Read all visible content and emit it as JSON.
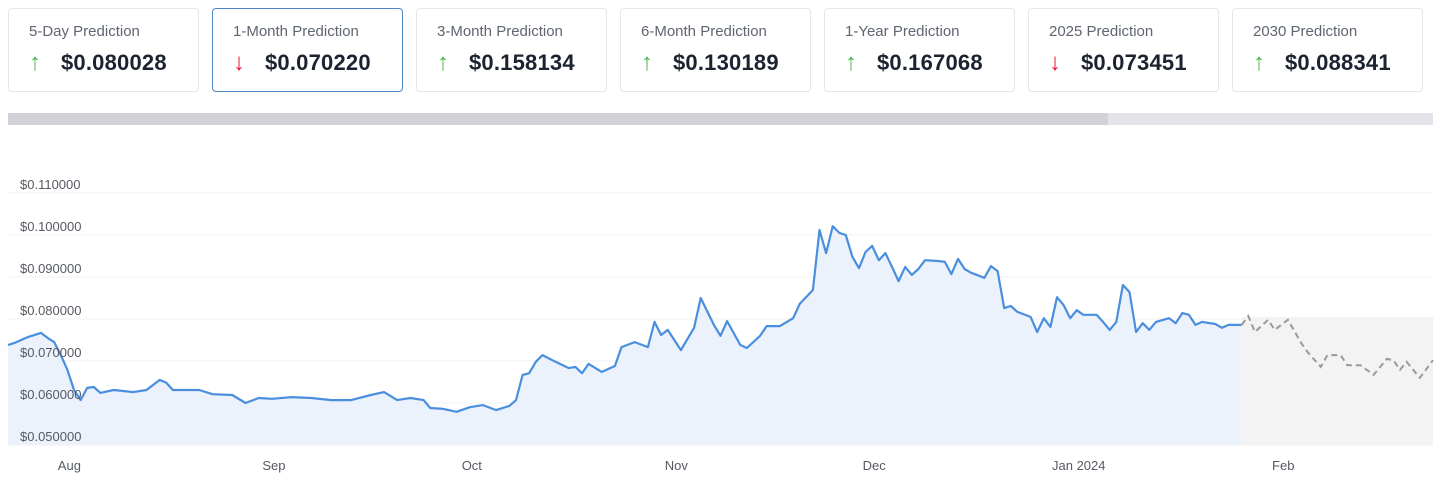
{
  "cards": [
    {
      "label": "5-Day Prediction",
      "value": "$0.080028",
      "direction": "up",
      "icon": "arrow-up-icon"
    },
    {
      "label": "1-Month Prediction",
      "value": "$0.070220",
      "direction": "down",
      "icon": "arrow-down-icon",
      "selected": true
    },
    {
      "label": "3-Month Prediction",
      "value": "$0.158134",
      "direction": "up",
      "icon": "arrow-up-icon"
    },
    {
      "label": "6-Month Prediction",
      "value": "$0.130189",
      "direction": "up",
      "icon": "arrow-up-icon"
    },
    {
      "label": "1-Year Prediction",
      "value": "$0.167068",
      "direction": "up",
      "icon": "arrow-up-icon"
    },
    {
      "label": "2025 Prediction",
      "value": "$0.073451",
      "direction": "down",
      "icon": "arrow-down-icon"
    },
    {
      "label": "2030 Prediction",
      "value": "$0.088341",
      "direction": "up",
      "icon": "arrow-up-icon"
    }
  ],
  "colors": {
    "up": "#4cb84a",
    "down": "#e8192c",
    "line": "#4a8ede",
    "fill": "#ebf2fc",
    "forecast_line": "#9a9a9a",
    "forecast_fill": "#f3f3f3",
    "selected_border": "#4f88c6"
  },
  "chart_data": {
    "type": "line",
    "title": "",
    "xlabel": "",
    "ylabel": "",
    "grid": true,
    "legend": "none",
    "xlim": [
      "2023-07-23",
      "2024-02-24"
    ],
    "ylim": [
      0.05,
      0.11
    ],
    "y_ticks": [
      {
        "value": 0.11,
        "label": "$0.110000"
      },
      {
        "value": 0.1,
        "label": "$0.100000"
      },
      {
        "value": 0.09,
        "label": "$0.090000"
      },
      {
        "value": 0.08,
        "label": "$0.080000"
      },
      {
        "value": 0.07,
        "label": "$0.070000"
      },
      {
        "value": 0.06,
        "label": "$0.060000"
      },
      {
        "value": 0.05,
        "label": "$0.050000"
      }
    ],
    "x_ticks": [
      {
        "date": "2023-08-01",
        "label": "Aug"
      },
      {
        "date": "2023-09-01",
        "label": "Sep"
      },
      {
        "date": "2023-10-01",
        "label": "Oct"
      },
      {
        "date": "2023-11-01",
        "label": "Nov"
      },
      {
        "date": "2023-12-01",
        "label": "Dec"
      },
      {
        "date": "2024-01-01",
        "label": "Jan 2024"
      },
      {
        "date": "2024-02-01",
        "label": "Feb"
      }
    ],
    "series": [
      {
        "style": "solid",
        "points": [
          [
            "2023-07-23",
            0.0738
          ],
          [
            "2023-07-24",
            0.0743
          ],
          [
            "2023-07-26",
            0.0757
          ],
          [
            "2023-07-28",
            0.0767
          ],
          [
            "2023-07-29",
            0.0755
          ],
          [
            "2023-07-30",
            0.0745
          ],
          [
            "2023-07-31",
            0.0714
          ],
          [
            "2023-08-01",
            0.0679
          ],
          [
            "2023-08-02",
            0.0631
          ],
          [
            "2023-08-03",
            0.0607
          ],
          [
            "2023-08-04",
            0.0636
          ],
          [
            "2023-08-05",
            0.0638
          ],
          [
            "2023-08-06",
            0.0624
          ],
          [
            "2023-08-08",
            0.0631
          ],
          [
            "2023-08-11",
            0.0626
          ],
          [
            "2023-08-13",
            0.0631
          ],
          [
            "2023-08-15",
            0.0655
          ],
          [
            "2023-08-16",
            0.0648
          ],
          [
            "2023-08-17",
            0.0631
          ],
          [
            "2023-08-21",
            0.0631
          ],
          [
            "2023-08-23",
            0.0621
          ],
          [
            "2023-08-26",
            0.0619
          ],
          [
            "2023-08-28",
            0.06
          ],
          [
            "2023-08-30",
            0.0612
          ],
          [
            "2023-09-01",
            0.061
          ],
          [
            "2023-09-04",
            0.0614
          ],
          [
            "2023-09-07",
            0.0612
          ],
          [
            "2023-09-10",
            0.0607
          ],
          [
            "2023-09-13",
            0.0607
          ],
          [
            "2023-09-16",
            0.0619
          ],
          [
            "2023-09-18",
            0.0626
          ],
          [
            "2023-09-20",
            0.0607
          ],
          [
            "2023-09-22",
            0.0612
          ],
          [
            "2023-09-24",
            0.0607
          ],
          [
            "2023-09-25",
            0.0588
          ],
          [
            "2023-09-27",
            0.0586
          ],
          [
            "2023-09-29",
            0.0579
          ],
          [
            "2023-10-01",
            0.059
          ],
          [
            "2023-10-03",
            0.0595
          ],
          [
            "2023-10-05",
            0.0583
          ],
          [
            "2023-10-07",
            0.0593
          ],
          [
            "2023-10-08",
            0.0607
          ],
          [
            "2023-10-09",
            0.0667
          ],
          [
            "2023-10-10",
            0.0671
          ],
          [
            "2023-10-11",
            0.0698
          ],
          [
            "2023-10-12",
            0.0714
          ],
          [
            "2023-10-14",
            0.0698
          ],
          [
            "2023-10-16",
            0.0683
          ],
          [
            "2023-10-17",
            0.0686
          ],
          [
            "2023-10-18",
            0.0671
          ],
          [
            "2023-10-19",
            0.0693
          ],
          [
            "2023-10-21",
            0.0674
          ],
          [
            "2023-10-23",
            0.0688
          ],
          [
            "2023-10-24",
            0.0733
          ],
          [
            "2023-10-26",
            0.0745
          ],
          [
            "2023-10-28",
            0.0733
          ],
          [
            "2023-10-29",
            0.0793
          ],
          [
            "2023-10-30",
            0.0762
          ],
          [
            "2023-10-31",
            0.0774
          ],
          [
            "2023-11-01",
            0.075
          ],
          [
            "2023-11-02",
            0.0726
          ],
          [
            "2023-11-04",
            0.0779
          ],
          [
            "2023-11-05",
            0.085
          ],
          [
            "2023-11-07",
            0.0786
          ],
          [
            "2023-11-08",
            0.076
          ],
          [
            "2023-11-09",
            0.0795
          ],
          [
            "2023-11-11",
            0.0738
          ],
          [
            "2023-11-12",
            0.0731
          ],
          [
            "2023-11-14",
            0.076
          ],
          [
            "2023-11-15",
            0.0783
          ],
          [
            "2023-11-17",
            0.0783
          ],
          [
            "2023-11-19",
            0.0802
          ],
          [
            "2023-11-20",
            0.0836
          ],
          [
            "2023-11-22",
            0.0869
          ],
          [
            "2023-11-23",
            0.1012
          ],
          [
            "2023-11-24",
            0.0957
          ],
          [
            "2023-11-25",
            0.1021
          ],
          [
            "2023-11-26",
            0.1005
          ],
          [
            "2023-11-27",
            0.1
          ],
          [
            "2023-11-28",
            0.0948
          ],
          [
            "2023-11-29",
            0.0921
          ],
          [
            "2023-11-30",
            0.096
          ],
          [
            "2023-12-01",
            0.0974
          ],
          [
            "2023-12-02",
            0.094
          ],
          [
            "2023-12-03",
            0.0957
          ],
          [
            "2023-12-04",
            0.0924
          ],
          [
            "2023-12-05",
            0.089
          ],
          [
            "2023-12-06",
            0.0924
          ],
          [
            "2023-12-07",
            0.0905
          ],
          [
            "2023-12-08",
            0.0919
          ],
          [
            "2023-12-09",
            0.094
          ],
          [
            "2023-12-11",
            0.0938
          ],
          [
            "2023-12-12",
            0.0936
          ],
          [
            "2023-12-13",
            0.0907
          ],
          [
            "2023-12-14",
            0.0943
          ],
          [
            "2023-12-15",
            0.0919
          ],
          [
            "2023-12-16",
            0.091
          ],
          [
            "2023-12-18",
            0.0898
          ],
          [
            "2023-12-19",
            0.0926
          ],
          [
            "2023-12-20",
            0.0914
          ],
          [
            "2023-12-21",
            0.0826
          ],
          [
            "2023-12-22",
            0.0831
          ],
          [
            "2023-12-23",
            0.0817
          ],
          [
            "2023-12-25",
            0.0805
          ],
          [
            "2023-12-26",
            0.0769
          ],
          [
            "2023-12-27",
            0.0802
          ],
          [
            "2023-12-28",
            0.0781
          ],
          [
            "2023-12-29",
            0.0852
          ],
          [
            "2023-12-30",
            0.0833
          ],
          [
            "2023-12-31",
            0.0802
          ],
          [
            "2024-01-01",
            0.0821
          ],
          [
            "2024-01-02",
            0.081
          ],
          [
            "2024-01-04",
            0.081
          ],
          [
            "2024-01-05",
            0.0793
          ],
          [
            "2024-01-06",
            0.0774
          ],
          [
            "2024-01-07",
            0.0793
          ],
          [
            "2024-01-08",
            0.0881
          ],
          [
            "2024-01-09",
            0.0864
          ],
          [
            "2024-01-10",
            0.0769
          ],
          [
            "2024-01-11",
            0.079
          ],
          [
            "2024-01-12",
            0.0774
          ],
          [
            "2024-01-13",
            0.0793
          ],
          [
            "2024-01-15",
            0.0802
          ],
          [
            "2024-01-16",
            0.079
          ],
          [
            "2024-01-17",
            0.0814
          ],
          [
            "2024-01-18",
            0.081
          ],
          [
            "2024-01-19",
            0.0786
          ],
          [
            "2024-01-20",
            0.0793
          ],
          [
            "2024-01-22",
            0.0788
          ],
          [
            "2024-01-23",
            0.0779
          ],
          [
            "2024-01-24",
            0.0786
          ],
          [
            "2024-01-26",
            0.0786
          ]
        ]
      },
      {
        "style": "dashed",
        "points": [
          [
            "2024-01-26",
            0.0786
          ],
          [
            "2024-01-27",
            0.0807
          ],
          [
            "2024-01-28",
            0.0769
          ],
          [
            "2024-01-30",
            0.0798
          ],
          [
            "2024-01-31",
            0.0774
          ],
          [
            "2024-02-02",
            0.0798
          ],
          [
            "2024-02-04",
            0.0743
          ],
          [
            "2024-02-05",
            0.0721
          ],
          [
            "2024-02-07",
            0.0686
          ],
          [
            "2024-02-08",
            0.0714
          ],
          [
            "2024-02-10",
            0.0714
          ],
          [
            "2024-02-11",
            0.069
          ],
          [
            "2024-02-13",
            0.069
          ],
          [
            "2024-02-15",
            0.0667
          ],
          [
            "2024-02-17",
            0.0705
          ],
          [
            "2024-02-18",
            0.0702
          ],
          [
            "2024-02-19",
            0.0679
          ],
          [
            "2024-02-20",
            0.0698
          ],
          [
            "2024-02-22",
            0.066
          ],
          [
            "2024-02-24",
            0.0702
          ]
        ]
      }
    ]
  }
}
